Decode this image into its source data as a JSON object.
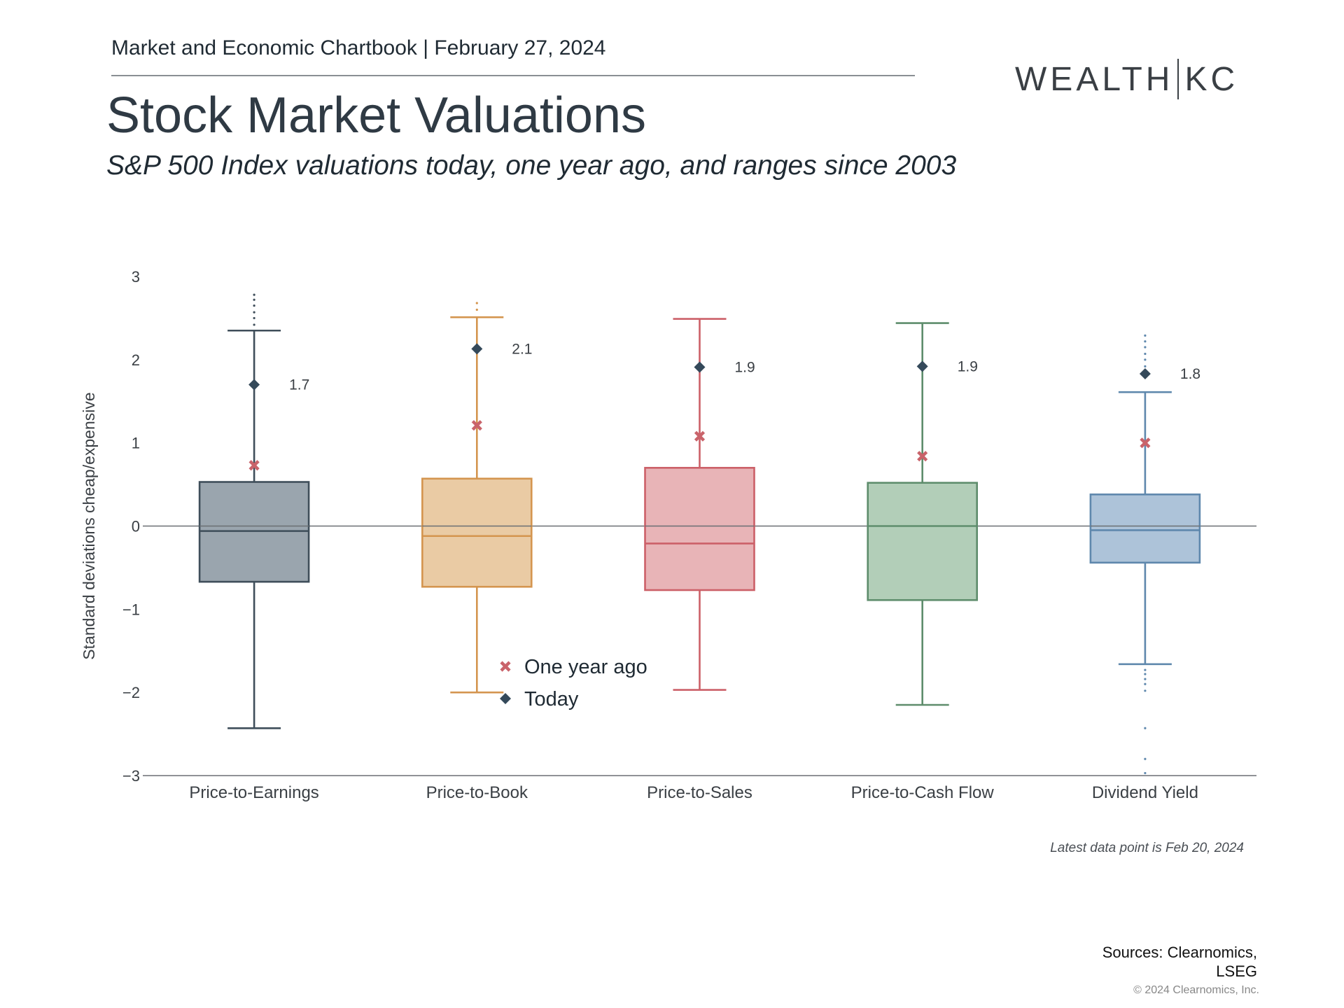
{
  "header": {
    "chartbook": "Market and Economic Chartbook | February 27, 2024",
    "brand_left": "WEALTH",
    "brand_right": "KC"
  },
  "title": "Stock Market Valuations",
  "subtitle": "S&P 500 Index valuations today, one year ago, and ranges since 2003",
  "footer": {
    "note": "Latest data point is Feb 20, 2024",
    "sources": "Sources: Clearnomics, LSEG",
    "copyright": "© 2024 Clearnomics, Inc."
  },
  "chart_data": {
    "type": "box",
    "ylabel": "Standard deviations cheap/expensive",
    "ylim": [
      -3,
      3
    ],
    "yticks": [
      "3",
      "2",
      "1",
      "0",
      "−1",
      "−2",
      "−3"
    ],
    "ytick_values": [
      3,
      2,
      1,
      0,
      -1,
      -2,
      -3
    ],
    "legend": [
      {
        "label": "One year ago",
        "marker": "x",
        "color": "#c9636a"
      },
      {
        "label": "Today",
        "marker": "diamond",
        "color": "#34495a"
      }
    ],
    "series": [
      {
        "category": "Price-to-Earnings",
        "whisker_low": -2.43,
        "q1": -0.67,
        "median": -0.06,
        "q3": 0.53,
        "whisker_high": 2.35,
        "outliers": [
          2.42,
          2.5,
          2.57,
          2.65,
          2.72,
          2.78
        ],
        "today": 1.7,
        "today_label": "1.7",
        "year_ago": 0.73,
        "stroke": "#3f4e5a",
        "fill": "#9aa5ae"
      },
      {
        "category": "Price-to-Book",
        "whisker_low": -2.0,
        "q1": -0.73,
        "median": -0.12,
        "q3": 0.57,
        "whisker_high": 2.51,
        "outliers": [
          2.6,
          2.68
        ],
        "today": 2.13,
        "today_label": "2.1",
        "year_ago": 1.21,
        "stroke": "#d4954f",
        "fill": "#eacba4"
      },
      {
        "category": "Price-to-Sales",
        "whisker_low": -1.97,
        "q1": -0.77,
        "median": -0.21,
        "q3": 0.7,
        "whisker_high": 2.49,
        "outliers": [],
        "today": 1.91,
        "today_label": "1.9",
        "year_ago": 1.08,
        "stroke": "#cc6068",
        "fill": "#e8b4b7"
      },
      {
        "category": "Price-to-Cash Flow",
        "whisker_low": -2.15,
        "q1": -0.89,
        "median": 0.0,
        "q3": 0.52,
        "whisker_high": 2.44,
        "outliers": [],
        "today": 1.92,
        "today_label": "1.9",
        "year_ago": 0.84,
        "stroke": "#5e8d6c",
        "fill": "#b2ceb8"
      },
      {
        "category": "Dividend Yield",
        "whisker_low": -1.66,
        "q1": -0.44,
        "median": -0.05,
        "q3": 0.38,
        "whisker_high": 1.61,
        "outliers": [
          1.85,
          1.92,
          2.0,
          2.07,
          2.15,
          2.22,
          2.29,
          -1.73,
          -1.78,
          -1.84,
          -1.9,
          -1.98,
          -2.43,
          -2.8,
          -2.97
        ],
        "today": 1.83,
        "today_label": "1.8",
        "year_ago": 1.0,
        "stroke": "#5f88ad",
        "fill": "#adc3d9"
      }
    ]
  }
}
